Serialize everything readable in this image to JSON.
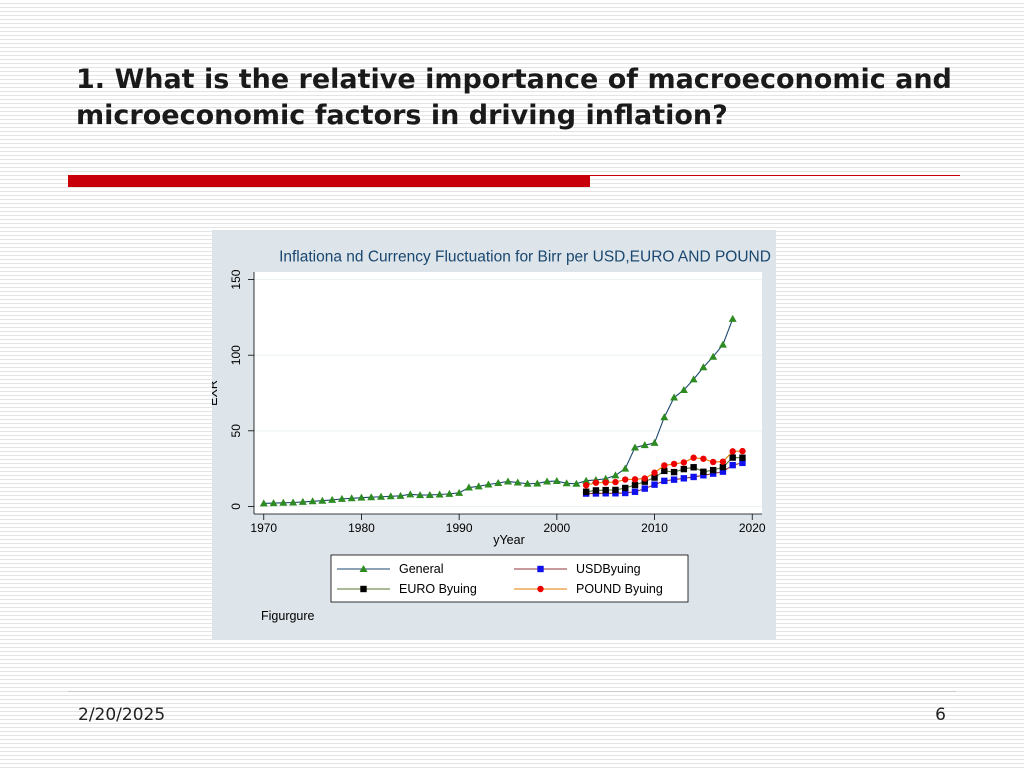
{
  "slide": {
    "title": "1. What is the relative importance of macroeconomic and microeconomic factors in driving inflation?",
    "date": "2/20/2025",
    "page_number": "6"
  },
  "chart_data": {
    "type": "line",
    "title": "Inflationa nd Currency Fluctuation for Birr per USD,EURO AND POUND",
    "xlabel": "yYear",
    "ylabel": "EXR",
    "note": "Figurgure",
    "xlim": [
      1969,
      2021
    ],
    "ylim": [
      -5,
      155
    ],
    "x_ticks": [
      1970,
      1980,
      1990,
      2000,
      2010,
      2020
    ],
    "y_ticks": [
      0,
      50,
      100,
      150
    ],
    "grid": true,
    "legend_position": "bottom",
    "series": [
      {
        "name": "General",
        "line_color": "#1a476f",
        "marker": "triangle",
        "marker_color": "#2e8b22",
        "x": [
          1970,
          1971,
          1972,
          1973,
          1974,
          1975,
          1976,
          1977,
          1978,
          1979,
          1980,
          1981,
          1982,
          1983,
          1984,
          1985,
          1986,
          1987,
          1988,
          1989,
          1990,
          1991,
          1992,
          1993,
          1994,
          1995,
          1996,
          1997,
          1998,
          1999,
          2000,
          2001,
          2002,
          2003,
          2004,
          2005,
          2006,
          2007,
          2008,
          2009,
          2010,
          2011,
          2012,
          2013,
          2014,
          2015,
          2016,
          2017,
          2018
        ],
        "y": [
          2,
          2.2,
          2.4,
          2.6,
          3,
          3.4,
          3.8,
          4.3,
          5,
          5.4,
          5.8,
          6.1,
          6.4,
          6.7,
          7,
          8,
          7.5,
          7.6,
          7.9,
          8.3,
          9,
          12.5,
          13.3,
          14.5,
          15.5,
          16.5,
          15.8,
          15,
          15.2,
          16.5,
          16.8,
          15.3,
          15,
          17,
          17.5,
          18.3,
          20.5,
          25,
          39,
          40.5,
          42,
          59,
          72,
          77,
          84,
          92,
          99,
          107,
          124
        ]
      },
      {
        "name": "USDByuing",
        "line_color": "#90353b",
        "marker": "square",
        "marker_color": "#1010ee",
        "x": [
          2003,
          2004,
          2005,
          2006,
          2007,
          2008,
          2009,
          2010,
          2011,
          2012,
          2013,
          2014,
          2015,
          2016,
          2017,
          2018,
          2019
        ],
        "y": [
          8.5,
          8.6,
          8.7,
          8.7,
          8.9,
          9.7,
          11.8,
          14.4,
          16.9,
          17.7,
          18.6,
          19.5,
          20.6,
          21.7,
          23,
          27.3,
          28.8
        ]
      },
      {
        "name": "EURO Byuing",
        "line_color": "#55752f",
        "marker": "square",
        "marker_color": "#000000",
        "x": [
          2003,
          2004,
          2005,
          2006,
          2007,
          2008,
          2009,
          2010,
          2011,
          2012,
          2013,
          2014,
          2015,
          2016,
          2017,
          2018,
          2019
        ],
        "y": [
          9.7,
          10.6,
          10.8,
          10.9,
          12.2,
          14.2,
          16.4,
          19.1,
          23.5,
          22.7,
          24.7,
          25.9,
          22.9,
          24,
          26,
          32.3,
          32.2
        ]
      },
      {
        "name": "POUND Byuing",
        "line_color": "#e37e00",
        "marker": "circle",
        "marker_color": "#ee0000",
        "x": [
          2003,
          2004,
          2005,
          2006,
          2007,
          2008,
          2009,
          2010,
          2011,
          2012,
          2013,
          2014,
          2015,
          2016,
          2017,
          2018,
          2019
        ],
        "y": [
          14,
          15.7,
          15.8,
          16.1,
          17.8,
          17.9,
          18.5,
          22.3,
          27.1,
          28.1,
          29.1,
          32.2,
          31.5,
          29.4,
          29.6,
          36.4,
          36.6
        ]
      }
    ]
  }
}
